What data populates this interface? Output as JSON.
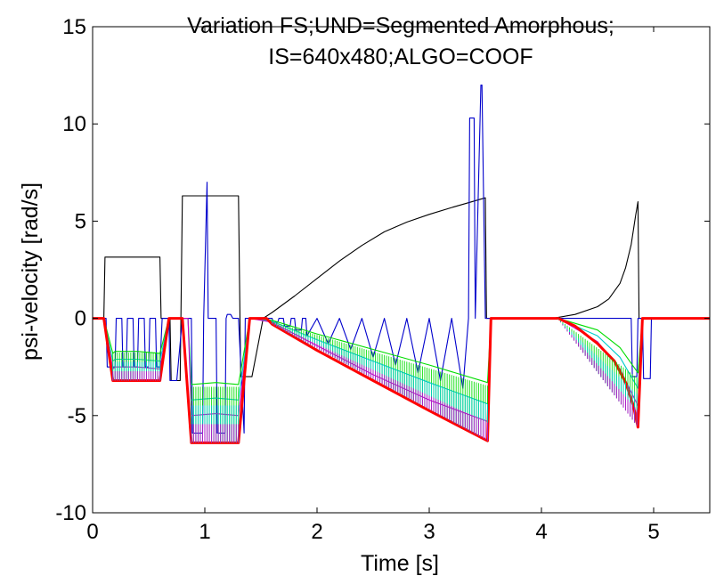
{
  "chart_data": {
    "type": "line",
    "title_lines": [
      "Variation FS;UND=Segmented Amorphous;",
      "IS=640x480;ALGO=COOF"
    ],
    "xlabel": "Time [s]",
    "ylabel": "psi-velocity [rad/s]",
    "xlim": [
      0,
      5.5
    ],
    "ylim": [
      -10,
      15
    ],
    "xticks": [
      0,
      1,
      2,
      3,
      4,
      5
    ],
    "yticks": [
      -10,
      -5,
      0,
      5,
      10,
      15
    ],
    "grid": false,
    "legend": "none",
    "segments": [
      {
        "t0": 0.18,
        "t1": 0.6,
        "v0": -3.2,
        "v1": -3.2
      },
      {
        "t0": 0.88,
        "t1": 1.3,
        "v0": -6.4,
        "v1": -6.4
      },
      {
        "t0": 1.6,
        "t1": 3.52,
        "v0": -0.3,
        "v1": -6.3
      },
      {
        "t0": 4.15,
        "t1": 4.86,
        "v0": -0.05,
        "v1": -5.6
      }
    ],
    "series": [
      {
        "color": "#000000",
        "x": [
          0,
          0.1,
          0.11,
          0.6,
          0.61,
          0.69,
          0.7,
          0.78,
          0.8,
          1.3,
          1.32,
          1.42,
          1.52,
          1.6,
          1.8,
          2.0,
          2.2,
          2.4,
          2.6,
          2.8,
          3.0,
          3.2,
          3.35,
          3.5,
          3.51,
          3.53,
          4.1,
          4.3,
          4.5,
          4.6,
          4.7,
          4.75,
          4.8,
          4.84,
          4.86,
          4.87,
          5.5
        ],
        "y": [
          0,
          0,
          3.15,
          3.15,
          0,
          0,
          -3.2,
          -3.2,
          6.3,
          6.3,
          -3.0,
          -3.0,
          0,
          0.3,
          1.15,
          2.05,
          2.95,
          3.75,
          4.45,
          4.95,
          5.35,
          5.7,
          5.95,
          6.2,
          0,
          0,
          0,
          0.2,
          0.6,
          1.0,
          1.8,
          2.6,
          3.8,
          5.3,
          6.0,
          0,
          0
        ]
      },
      {
        "color": "#0000cc",
        "x": [
          0,
          0.12,
          0.13,
          0.2,
          0.21,
          0.26,
          0.27,
          0.3,
          0.31,
          0.36,
          0.37,
          0.4,
          0.41,
          0.46,
          0.47,
          0.5,
          0.51,
          0.56,
          0.57,
          0.6,
          0.62,
          0.68,
          0.69,
          0.75,
          0.8,
          0.88,
          0.89,
          0.98,
          0.99,
          1.02,
          1.03,
          1.1,
          1.11,
          1.18,
          1.19,
          1.2,
          1.23,
          1.25,
          1.3,
          1.35,
          1.36,
          1.45,
          1.55,
          1.6,
          1.61,
          1.65,
          1.66,
          1.7,
          1.71,
          1.76,
          1.77,
          1.8,
          1.81,
          1.86,
          1.87,
          1.9,
          1.91,
          2.0,
          2.1,
          2.2,
          2.3,
          2.4,
          2.5,
          2.6,
          2.7,
          2.8,
          2.9,
          3.0,
          3.1,
          3.2,
          3.3,
          3.35,
          3.36,
          3.4,
          3.41,
          3.46,
          3.47,
          3.5,
          3.51,
          3.53,
          3.54,
          3.58,
          3.59,
          4.8,
          4.81,
          4.85,
          4.86,
          4.9,
          4.91,
          4.97,
          4.98,
          5.5
        ],
        "y": [
          0,
          0,
          -2.5,
          -2.5,
          0,
          0,
          -2.5,
          -2.5,
          0,
          0,
          -2.5,
          -2.5,
          0,
          0,
          -2.5,
          -2.5,
          0,
          0,
          -2.5,
          -2.5,
          0,
          0,
          -3.2,
          -3.2,
          0,
          0,
          -5.9,
          -5.9,
          0,
          7.0,
          0,
          0,
          -5.9,
          -5.9,
          0,
          0.2,
          0.2,
          0,
          0,
          -5.9,
          0,
          0,
          0,
          0,
          -0.2,
          -0.2,
          0,
          0,
          -0.4,
          -0.4,
          0,
          0,
          -0.6,
          -0.6,
          0,
          0,
          -0.9,
          0,
          -1.3,
          0,
          -1.6,
          0,
          -2.0,
          0,
          -2.4,
          0,
          -2.8,
          0,
          -3.2,
          0,
          -3.6,
          0,
          10.3,
          10.3,
          0,
          12.0,
          12.0,
          0,
          0,
          0,
          0,
          0,
          0,
          0,
          -3.0,
          -3.0,
          0,
          0,
          -3.1,
          -3.1,
          0,
          0
        ]
      },
      {
        "color": "#00dd00",
        "x": [
          0.1,
          0.18,
          0.2,
          0.4,
          0.6,
          0.68,
          0.85,
          0.88,
          1.1,
          1.3,
          1.4,
          1.6,
          2.0,
          2.5,
          3.0,
          3.52,
          3.55,
          4.15,
          4.5,
          4.7,
          4.86,
          4.9
        ],
        "y": [
          0,
          -1.8,
          -1.7,
          -1.7,
          -1.8,
          0,
          0,
          -3.4,
          -3.3,
          -3.4,
          0,
          -0.1,
          -0.8,
          -1.6,
          -2.4,
          -3.3,
          0,
          0,
          -0.6,
          -1.5,
          -2.8,
          0
        ]
      },
      {
        "color": "#00cccc",
        "x": [
          0.1,
          0.18,
          0.2,
          0.4,
          0.6,
          0.68,
          0.85,
          0.88,
          1.1,
          1.3,
          1.4,
          1.6,
          2.0,
          2.5,
          3.0,
          3.52,
          3.55,
          4.15,
          4.5,
          4.7,
          4.86,
          4.9
        ],
        "y": [
          0,
          -2.2,
          -2.1,
          -2.1,
          -2.2,
          0,
          0,
          -4.2,
          -4.1,
          -4.2,
          0,
          -0.15,
          -1.1,
          -2.2,
          -3.3,
          -4.4,
          0,
          0,
          -0.9,
          -2.0,
          -3.6,
          0
        ]
      },
      {
        "color": "#cc00cc",
        "x": [
          0.1,
          0.18,
          0.2,
          0.4,
          0.6,
          0.68,
          0.85,
          0.88,
          1.1,
          1.3,
          1.4,
          1.6,
          2.0,
          2.5,
          3.0,
          3.52,
          3.55,
          4.15,
          4.5,
          4.7,
          4.86,
          4.9
        ],
        "y": [
          0,
          -2.6,
          -2.5,
          -2.5,
          -2.6,
          0,
          0,
          -5.0,
          -4.9,
          -5.0,
          0,
          -0.2,
          -1.4,
          -2.9,
          -4.2,
          -5.3,
          0,
          0,
          -1.2,
          -2.6,
          -4.5,
          0
        ]
      },
      {
        "color": "#ff0000",
        "x": [
          0,
          0.1,
          0.18,
          0.6,
          0.68,
          0.8,
          0.88,
          1.3,
          1.4,
          1.55,
          1.6,
          2.0,
          2.5,
          3.0,
          3.52,
          3.55,
          4.15,
          4.3,
          4.5,
          4.65,
          4.75,
          4.82,
          4.86,
          4.9,
          5.5
        ],
        "y": [
          0,
          0,
          -3.2,
          -3.2,
          0,
          0,
          -6.4,
          -6.4,
          0,
          0,
          -0.3,
          -1.65,
          -3.2,
          -4.75,
          -6.3,
          0,
          0,
          -0.4,
          -1.3,
          -2.2,
          -3.3,
          -4.5,
          -5.6,
          0,
          0
        ]
      }
    ]
  }
}
